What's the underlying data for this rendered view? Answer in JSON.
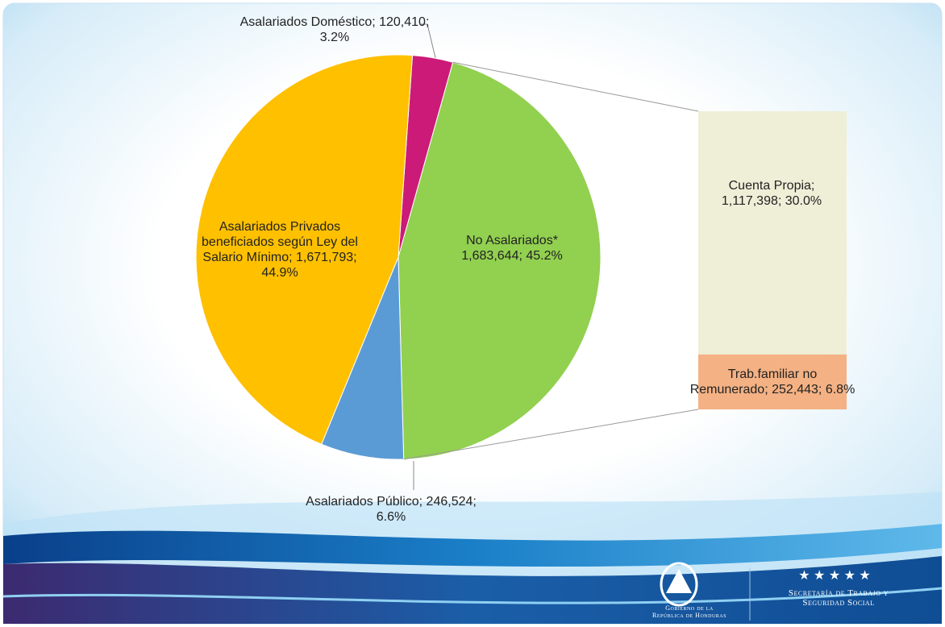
{
  "chart_data": [
    {
      "type": "pie",
      "values": [
        120410,
        1683644,
        246524,
        1671793
      ],
      "value_labels": [
        "Asalariados Doméstico; 120,410; 3.2%",
        "No Asalariados* 1,683,644; 45.2%",
        "Asalariados Público; 246,524; 6.6%",
        "Asalariados Privados beneficiados según Ley del Salario Mínimo; 1,671,793; 44.9%"
      ],
      "colors": [
        "#cc1a78",
        "#92d050",
        "#5b9bd5",
        "#ffc000"
      ]
    },
    {
      "type": "bar",
      "values": [
        1117398,
        252443
      ],
      "value_labels": [
        "Cuenta Propia; 1,117,398; 30.0%",
        "Trab.familiar no Remunerado; 252,443; 6.8%"
      ],
      "colors": [
        "#efefd8",
        "#f4b183"
      ]
    }
  ],
  "footer": {
    "government": [
      "Gobierno de la",
      "República de Honduras"
    ],
    "ministry": [
      "Secretaría de Trabajo y",
      "Seguridad Social"
    ]
  }
}
